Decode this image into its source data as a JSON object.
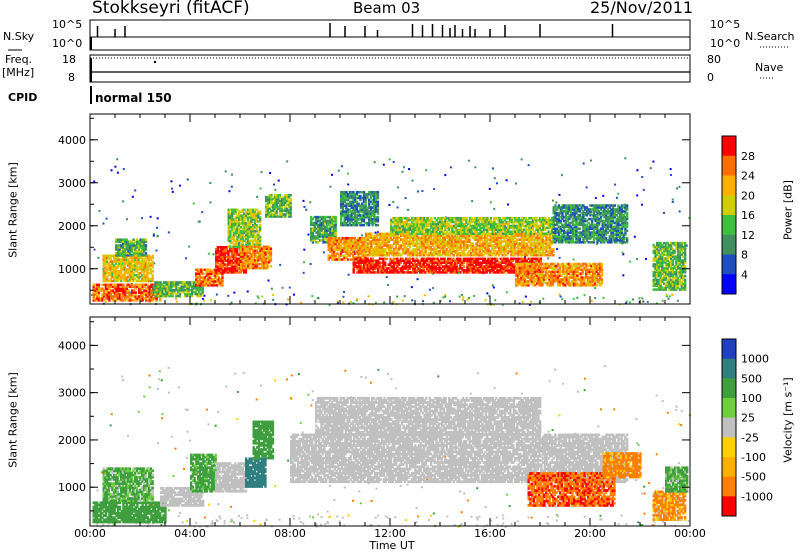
{
  "header": {
    "title": "Stokkseyri (fitACF)",
    "beam": "Beam 03",
    "date": "25/Nov/2011"
  },
  "summary_panels": {
    "nsky_label": "N.Sky",
    "nsky_ticks": [
      "10^5",
      "10^0"
    ],
    "nsearch_label": "N.Search",
    "freq_label": "Freq.",
    "freq_unit": "[MHz]",
    "freq_ticks": [
      "18",
      "8"
    ],
    "nave_label": "Nave",
    "nave_ticks": [
      "80",
      "0"
    ],
    "cpid_label": "CPID",
    "cpid_value": "normal 150"
  },
  "colors": {
    "power_scale": [
      "#0000ff",
      "#1f4fbf",
      "#3f8f5f",
      "#3fbf3f",
      "#cfcf00",
      "#ffaf00",
      "#ff6f00",
      "#ff0000"
    ],
    "velocity_scale": [
      "#1f3fbf",
      "#2f7f7f",
      "#3f9f3f",
      "#6fcf3f",
      "#c0c0c0",
      "#ffd000",
      "#ffaf00",
      "#ff7f00",
      "#ff0000"
    ],
    "ground_scatter": "#c0c0c0"
  },
  "chart_data": [
    {
      "type": "heatmap",
      "panel": "power",
      "xlabel": "Time UT",
      "ylabel": "Slant Range [km]",
      "xlim": [
        "00:00",
        "24:00"
      ],
      "x_ticks": [
        "00:00",
        "04:00",
        "08:00",
        "12:00",
        "16:00",
        "20:00",
        "00:00"
      ],
      "ylim": [
        180,
        4600
      ],
      "y_ticks": [
        1000,
        2000,
        3000,
        4000
      ],
      "colorbar": {
        "label": "Power [dB]",
        "ticks": [
          4,
          8,
          12,
          16,
          20,
          24,
          28
        ],
        "range": [
          0,
          32
        ]
      },
      "bands": [
        {
          "t_start": 0.1,
          "t_end": 2.8,
          "r_lo": 250,
          "r_hi": 650,
          "power": 26
        },
        {
          "t_start": 0.5,
          "t_end": 2.5,
          "r_lo": 700,
          "r_hi": 1300,
          "power": 20
        },
        {
          "t_start": 1.0,
          "t_end": 2.2,
          "r_lo": 1300,
          "r_hi": 1700,
          "power": 12
        },
        {
          "t_start": 2.5,
          "t_end": 4.5,
          "r_lo": 350,
          "r_hi": 700,
          "power": 14
        },
        {
          "t_start": 4.2,
          "t_end": 5.3,
          "r_lo": 600,
          "r_hi": 1000,
          "power": 26
        },
        {
          "t_start": 5.0,
          "t_end": 6.2,
          "r_lo": 900,
          "r_hi": 1500,
          "power": 30
        },
        {
          "t_start": 5.5,
          "t_end": 6.8,
          "r_lo": 1500,
          "r_hi": 2400,
          "power": 16
        },
        {
          "t_start": 6.0,
          "t_end": 7.2,
          "r_lo": 1000,
          "r_hi": 1500,
          "power": 24
        },
        {
          "t_start": 7.0,
          "t_end": 8.0,
          "r_lo": 2200,
          "r_hi": 2700,
          "power": 14
        },
        {
          "t_start": 8.8,
          "t_end": 9.8,
          "r_lo": 1600,
          "r_hi": 2200,
          "power": 12
        },
        {
          "t_start": 9.5,
          "t_end": 11.0,
          "r_lo": 1200,
          "r_hi": 1700,
          "power": 24
        },
        {
          "t_start": 10.5,
          "t_end": 18.0,
          "r_lo": 900,
          "r_hi": 1250,
          "power": 30
        },
        {
          "t_start": 11.0,
          "t_end": 18.5,
          "r_lo": 1300,
          "r_hi": 1800,
          "power": 22
        },
        {
          "t_start": 12.0,
          "t_end": 18.5,
          "r_lo": 1800,
          "r_hi": 2200,
          "power": 16
        },
        {
          "t_start": 10.0,
          "t_end": 11.5,
          "r_lo": 2000,
          "r_hi": 2800,
          "power": 10
        },
        {
          "t_start": 17.0,
          "t_end": 20.5,
          "r_lo": 600,
          "r_hi": 1100,
          "power": 24
        },
        {
          "t_start": 18.5,
          "t_end": 21.5,
          "r_lo": 1600,
          "r_hi": 2500,
          "power": 10
        },
        {
          "t_start": 22.5,
          "t_end": 23.8,
          "r_lo": 500,
          "r_hi": 1600,
          "power": 14
        }
      ]
    },
    {
      "type": "heatmap",
      "panel": "velocity",
      "xlabel": "Time UT",
      "ylabel": "Slant Range [km]",
      "xlim": [
        "00:00",
        "24:00"
      ],
      "x_ticks": [
        "00:00",
        "04:00",
        "08:00",
        "12:00",
        "16:00",
        "20:00",
        "00:00"
      ],
      "ylim": [
        180,
        4600
      ],
      "y_ticks": [
        1000,
        2000,
        3000,
        4000
      ],
      "colorbar": {
        "label": "Velocity [m s⁻¹]",
        "ticks": [
          "1000",
          "500",
          "100",
          "25",
          "-25",
          "-100",
          "-500",
          "-1000"
        ]
      },
      "bands": [
        {
          "t_start": 0.1,
          "t_end": 3.0,
          "r_lo": 250,
          "r_hi": 700,
          "velocity": 300
        },
        {
          "t_start": 0.5,
          "t_end": 2.5,
          "r_lo": 700,
          "r_hi": 1400,
          "velocity": 150
        },
        {
          "t_start": 2.8,
          "t_end": 4.5,
          "r_lo": 600,
          "r_hi": 1000,
          "velocity": 0,
          "ground": true
        },
        {
          "t_start": 4.0,
          "t_end": 5.0,
          "r_lo": 900,
          "r_hi": 1700,
          "velocity": 200
        },
        {
          "t_start": 5.0,
          "t_end": 6.2,
          "r_lo": 900,
          "r_hi": 1500,
          "velocity": 0,
          "ground": true
        },
        {
          "t_start": 6.2,
          "t_end": 7.0,
          "r_lo": 1000,
          "r_hi": 1600,
          "velocity": 700
        },
        {
          "t_start": 6.5,
          "t_end": 7.3,
          "r_lo": 1600,
          "r_hi": 2400,
          "velocity": 250
        },
        {
          "t_start": 8.0,
          "t_end": 21.5,
          "r_lo": 1100,
          "r_hi": 2100,
          "velocity": 0,
          "ground": true
        },
        {
          "t_start": 9.0,
          "t_end": 18.0,
          "r_lo": 2100,
          "r_hi": 2900,
          "velocity": 0,
          "ground": true
        },
        {
          "t_start": 17.5,
          "t_end": 21.0,
          "r_lo": 600,
          "r_hi": 1300,
          "velocity": -450
        },
        {
          "t_start": 20.5,
          "t_end": 22.0,
          "r_lo": 1200,
          "r_hi": 1700,
          "velocity": -200
        },
        {
          "t_start": 22.5,
          "t_end": 23.8,
          "r_lo": 300,
          "r_hi": 900,
          "velocity": -150
        },
        {
          "t_start": 23.0,
          "t_end": 23.9,
          "r_lo": 900,
          "r_hi": 1400,
          "velocity": 150
        }
      ]
    }
  ]
}
